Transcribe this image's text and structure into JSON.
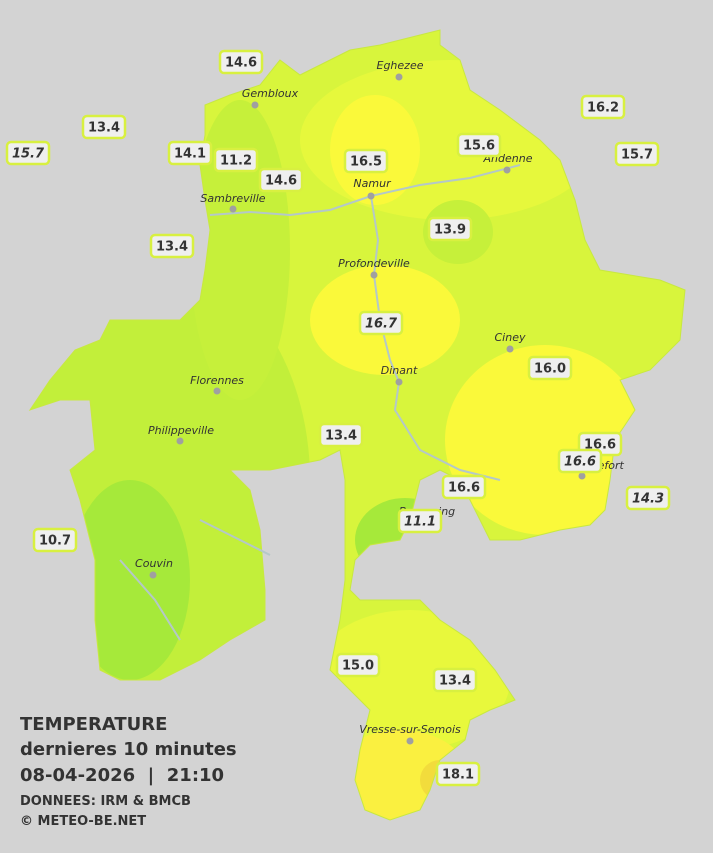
{
  "header": {
    "title": "TEMPERATURE",
    "subtitle": "dernieres 10 minutes",
    "datetime": "08-04-2026  |  21:10",
    "sources": "DONNEES: IRM & BMCB",
    "copyright": "© METEO-BE.NET"
  },
  "cities": [
    {
      "name": "Eghezee"
    },
    {
      "name": "Gembloux"
    },
    {
      "name": "Namur"
    },
    {
      "name": "Andenne"
    },
    {
      "name": "Sambreville"
    },
    {
      "name": "Profondeville"
    },
    {
      "name": "Ciney"
    },
    {
      "name": "Dinant"
    },
    {
      "name": "Florennes"
    },
    {
      "name": "Philippeville"
    },
    {
      "name": "Rochefort"
    },
    {
      "name": "Beauraing"
    },
    {
      "name": "Couvin"
    },
    {
      "name": "Vresse-sur-Semois"
    }
  ],
  "stations": [
    {
      "value": "14.6"
    },
    {
      "value": "13.4"
    },
    {
      "value": "15.7"
    },
    {
      "value": "14.1"
    },
    {
      "value": "11.2"
    },
    {
      "value": "14.6"
    },
    {
      "value": "16.5"
    },
    {
      "value": "15.6"
    },
    {
      "value": "16.2"
    },
    {
      "value": "15.7"
    },
    {
      "value": "13.4"
    },
    {
      "value": "13.9"
    },
    {
      "value": "16.7"
    },
    {
      "value": "16.0"
    },
    {
      "value": "13.4"
    },
    {
      "value": "16.6"
    },
    {
      "value": "16.6"
    },
    {
      "value": "16.6"
    },
    {
      "value": "14.3"
    },
    {
      "value": "11.1"
    },
    {
      "value": "10.7"
    },
    {
      "value": "15.0"
    },
    {
      "value": "13.4"
    },
    {
      "value": "18.1"
    }
  ]
}
